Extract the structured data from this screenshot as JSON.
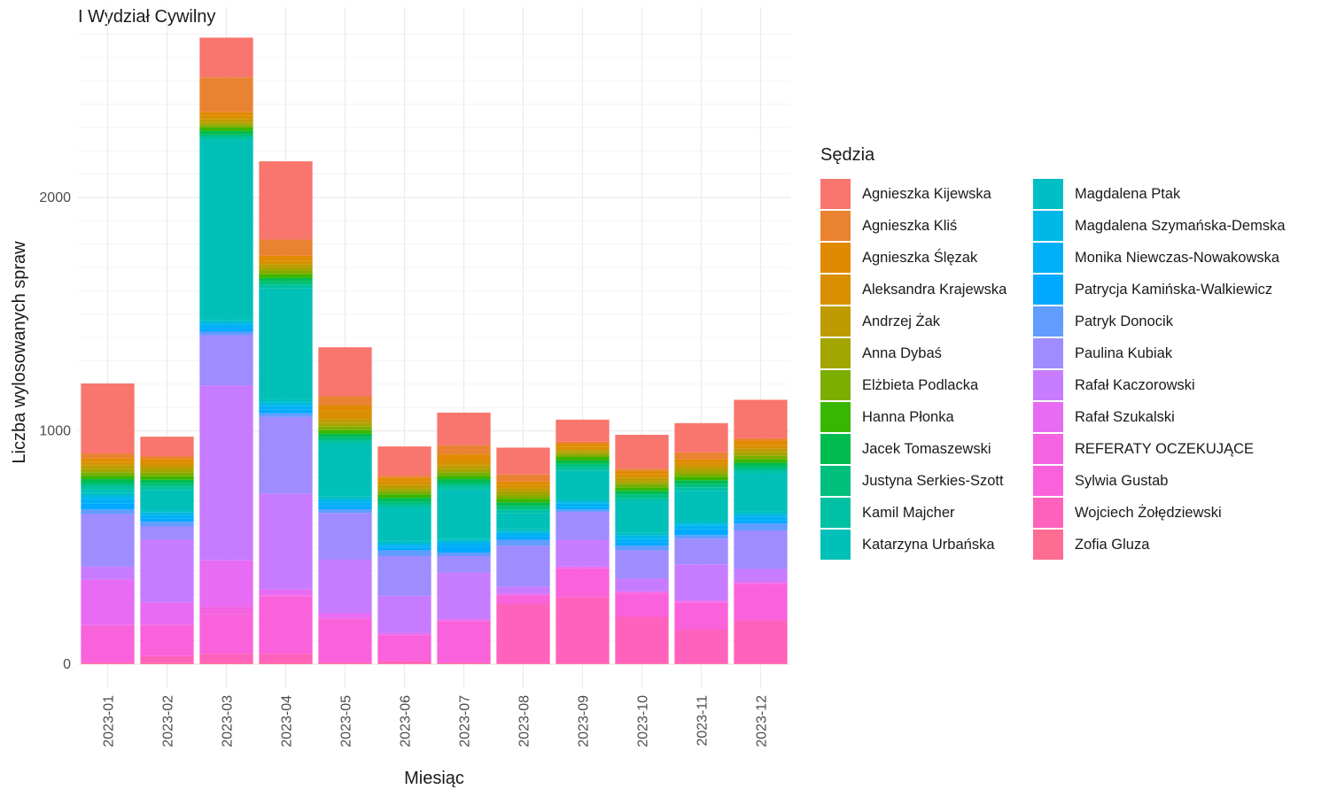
{
  "chart_data": {
    "type": "bar",
    "stacked": true,
    "title": "I Wydział Cywilny",
    "xlabel": "Miesiąc",
    "ylabel": "Liczba wylosowanych spraw",
    "legend_title": "Sędzia",
    "legend_position": "right",
    "grid": true,
    "ylim": [
      0,
      2750
    ],
    "yticks": [
      0,
      1000,
      2000
    ],
    "categories": [
      "2023-01",
      "2023-02",
      "2023-03",
      "2023-04",
      "2023-05",
      "2023-06",
      "2023-07",
      "2023-08",
      "2023-09",
      "2023-10",
      "2023-11",
      "2023-12"
    ],
    "series": [
      {
        "name": "Agnieszka Kijewska",
        "color": "#F8766D",
        "values": [
          300,
          85,
          170,
          335,
          210,
          125,
          140,
          115,
          95,
          145,
          125,
          165
        ]
      },
      {
        "name": "Agnieszka Kliś",
        "color": "#EA8331",
        "values": [
          20,
          10,
          150,
          70,
          40,
          10,
          40,
          30,
          10,
          10,
          30,
          10
        ]
      },
      {
        "name": "Agnieszka Ślęzak",
        "color": "#E18A00",
        "values": [
          15,
          15,
          15,
          20,
          25,
          15,
          25,
          15,
          10,
          15,
          15,
          20
        ]
      },
      {
        "name": "Aleksandra Krajewska",
        "color": "#D89000",
        "values": [
          15,
          15,
          15,
          15,
          35,
          15,
          20,
          15,
          15,
          15,
          15,
          15
        ]
      },
      {
        "name": "Andrzej Żak",
        "color": "#BE9C00",
        "values": [
          15,
          15,
          15,
          15,
          15,
          15,
          15,
          15,
          10,
          15,
          15,
          15
        ]
      },
      {
        "name": "Anna Dybaś",
        "color": "#A3A500",
        "values": [
          15,
          15,
          10,
          15,
          15,
          10,
          15,
          15,
          10,
          10,
          15,
          15
        ]
      },
      {
        "name": "Elżbieta Podlacka",
        "color": "#7CAE00",
        "values": [
          15,
          15,
          10,
          15,
          15,
          15,
          15,
          15,
          10,
          15,
          15,
          15
        ]
      },
      {
        "name": "Hanna Płonka",
        "color": "#39B600",
        "values": [
          15,
          15,
          15,
          15,
          15,
          15,
          15,
          15,
          15,
          15,
          15,
          15
        ]
      },
      {
        "name": "Jacek Tomaszewski",
        "color": "#00BB4E",
        "values": [
          15,
          15,
          15,
          15,
          15,
          15,
          15,
          15,
          15,
          15,
          15,
          15
        ]
      },
      {
        "name": "Justyna Serkies-Szott",
        "color": "#00BF7D",
        "values": [
          15,
          15,
          10,
          15,
          15,
          15,
          15,
          15,
          15,
          15,
          15,
          15
        ]
      },
      {
        "name": "Kamil Majcher",
        "color": "#00C1A3",
        "values": [
          15,
          15,
          15,
          15,
          15,
          15,
          15,
          15,
          15,
          15,
          15,
          15
        ]
      },
      {
        "name": "Katarzyna Urbańska",
        "color": "#00C0B8",
        "values": [
          15,
          85,
          770,
          475,
          225,
          140,
          210,
          70,
          120,
          135,
          130,
          165
        ]
      },
      {
        "name": "Magdalena Ptak",
        "color": "#00BFC4",
        "values": [
          10,
          10,
          10,
          15,
          10,
          10,
          10,
          10,
          10,
          10,
          10,
          10
        ]
      },
      {
        "name": "Magdalena Szymańska-Demska",
        "color": "#00B8E7",
        "values": [
          15,
          10,
          10,
          15,
          15,
          10,
          10,
          10,
          10,
          15,
          10,
          10
        ]
      },
      {
        "name": "Monika Niewczas-Nowakowska",
        "color": "#00B0F6",
        "values": [
          20,
          15,
          15,
          15,
          15,
          10,
          15,
          10,
          15,
          15,
          15,
          15
        ]
      },
      {
        "name": "Patrycja Kamińska-Walkiewicz",
        "color": "#00A9FF",
        "values": [
          25,
          15,
          15,
          15,
          15,
          10,
          25,
          15,
          10,
          15,
          25,
          15
        ]
      },
      {
        "name": "Patryk Donocik",
        "color": "#619CFF",
        "values": [
          20,
          20,
          15,
          15,
          15,
          25,
          15,
          25,
          10,
          20,
          15,
          30
        ]
      },
      {
        "name": "Paulina Kubiak",
        "color": "#9F8CFF",
        "values": [
          225,
          55,
          215,
          330,
          200,
          170,
          70,
          175,
          120,
          120,
          110,
          165
        ]
      },
      {
        "name": "Rafał Kaczorowski",
        "color": "#C77CFF",
        "values": [
          55,
          270,
          750,
          410,
          230,
          160,
          200,
          30,
          115,
          55,
          155,
          55
        ]
      },
      {
        "name": "Rafał Szukalski",
        "color": "#E76BF3",
        "values": [
          195,
          95,
          200,
          25,
          20,
          5,
          5,
          5,
          5,
          5,
          5,
          5
        ]
      },
      {
        "name": "REFERATY OCZEKUJĄCE",
        "color": "#F463E2",
        "values": [
          5,
          5,
          30,
          5,
          5,
          5,
          5,
          5,
          5,
          5,
          5,
          5
        ]
      },
      {
        "name": "Sylwia Gustab",
        "color": "#FA62DB",
        "values": [
          155,
          130,
          170,
          245,
          185,
          110,
          175,
          35,
          120,
          100,
          115,
          155
        ]
      },
      {
        "name": "Wojciech Żołędziewski",
        "color": "#FF62BC",
        "values": [
          5,
          30,
          40,
          40,
          5,
          10,
          5,
          255,
          285,
          200,
          145,
          185
        ]
      },
      {
        "name": "Zofia Gluza",
        "color": "#FF6C91",
        "values": [
          3,
          5,
          5,
          5,
          3,
          3,
          3,
          3,
          3,
          3,
          3,
          3
        ]
      }
    ]
  }
}
